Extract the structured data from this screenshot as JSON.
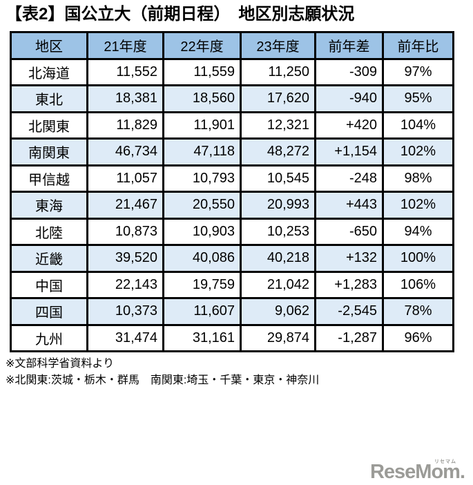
{
  "title": "【表2】国公立大（前期日程）　地区別志願状況",
  "table": {
    "columns": [
      "地区",
      "21年度",
      "22年度",
      "23年度",
      "前年差",
      "前年比"
    ],
    "rows": [
      [
        "北海道",
        "11,552",
        "11,559",
        "11,250",
        "-309",
        "97%"
      ],
      [
        "東北",
        "18,381",
        "18,560",
        "17,620",
        "-940",
        "95%"
      ],
      [
        "北関東",
        "11,829",
        "11,901",
        "12,321",
        "+420",
        "104%"
      ],
      [
        "南関東",
        "46,734",
        "47,118",
        "48,272",
        "+1,154",
        "102%"
      ],
      [
        "甲信越",
        "11,057",
        "10,793",
        "10,545",
        "-248",
        "98%"
      ],
      [
        "東海",
        "21,467",
        "20,550",
        "20,993",
        "+443",
        "102%"
      ],
      [
        "北陸",
        "10,873",
        "10,903",
        "10,253",
        "-650",
        "94%"
      ],
      [
        "近畿",
        "39,520",
        "40,086",
        "40,218",
        "+132",
        "100%"
      ],
      [
        "中国",
        "22,143",
        "19,759",
        "21,042",
        "+1,283",
        "106%"
      ],
      [
        "四国",
        "10,373",
        "11,607",
        "9,062",
        "-2,545",
        "78%"
      ],
      [
        "九州",
        "31,474",
        "31,161",
        "29,874",
        "-1,287",
        "96%"
      ]
    ]
  },
  "notes": [
    "※文部科学省資料より",
    "※北関東:茨城・栃木・群馬　南関東:埼玉・千葉・東京・神奈川"
  ],
  "logo": {
    "text": "ReseMom.",
    "ruby": "リセマム"
  },
  "colors": {
    "header_bg": "#9dc3e6",
    "stripe_bg": "#deebf7",
    "border_color": "#000000",
    "logo_color": "#9b9b97"
  },
  "chart_data": {
    "type": "table",
    "title": "【表2】国公立大（前期日程）　地区別志願状況",
    "columns": [
      "地区",
      "21年度",
      "22年度",
      "23年度",
      "前年差",
      "前年比"
    ],
    "categories": [
      "北海道",
      "東北",
      "北関東",
      "南関東",
      "甲信越",
      "東海",
      "北陸",
      "近畿",
      "中国",
      "四国",
      "九州"
    ],
    "series": [
      {
        "name": "21年度",
        "values": [
          11552,
          18381,
          11829,
          46734,
          11057,
          21467,
          10873,
          39520,
          22143,
          10373,
          31474
        ]
      },
      {
        "name": "22年度",
        "values": [
          11559,
          18560,
          11901,
          47118,
          10793,
          20550,
          10903,
          40086,
          19759,
          11607,
          31161
        ]
      },
      {
        "name": "23年度",
        "values": [
          11250,
          17620,
          12321,
          48272,
          10545,
          20993,
          10253,
          40218,
          21042,
          9062,
          29874
        ]
      },
      {
        "name": "前年差",
        "values": [
          -309,
          -940,
          420,
          1154,
          -248,
          443,
          -650,
          132,
          1283,
          -2545,
          -1287
        ]
      },
      {
        "name": "前年比(%)",
        "values": [
          97,
          95,
          104,
          102,
          98,
          102,
          94,
          100,
          106,
          78,
          96
        ]
      }
    ],
    "notes": [
      "※文部科学省資料より",
      "※北関東:茨城・栃木・群馬　南関東:埼玉・千葉・東京・神奈川"
    ]
  }
}
